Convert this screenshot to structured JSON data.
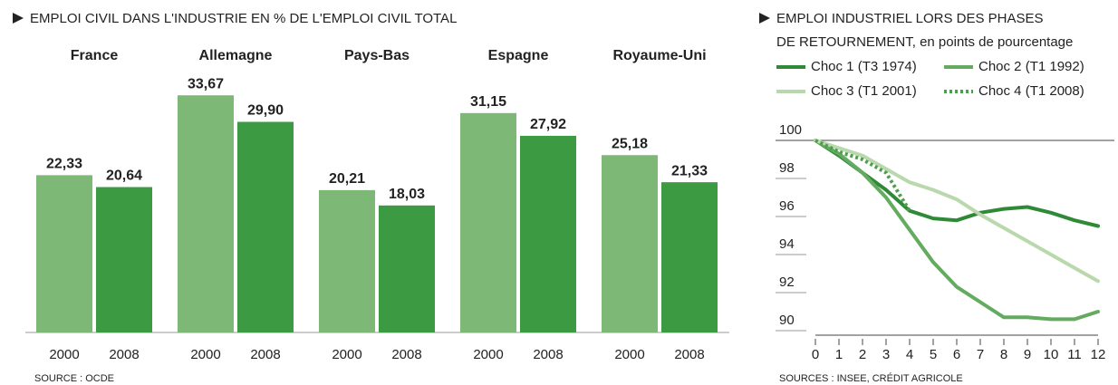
{
  "chart_data": [
    {
      "type": "bar",
      "title": "EMPLOI CIVIL DANS L'INDUSTRIE EN % DE L'EMPLOI CIVIL TOTAL",
      "categories": [
        "France",
        "Allemagne",
        "Pays-Bas",
        "Espagne",
        "Royaume-Uni"
      ],
      "series": [
        {
          "name": "2000",
          "color": "#7db877",
          "values": [
            22.33,
            33.67,
            20.21,
            31.15,
            25.18
          ],
          "value_labels": [
            "22,33",
            "33,67",
            "20,21",
            "31,15",
            "25,18"
          ]
        },
        {
          "name": "2008",
          "color": "#3b9a42",
          "values": [
            20.64,
            29.9,
            18.03,
            27.92,
            21.33
          ],
          "value_labels": [
            "20,64",
            "29,90",
            "18,03",
            "27,92",
            "21,33"
          ]
        }
      ],
      "ylim": [
        0,
        40
      ],
      "source": "SOURCE : OCDE"
    },
    {
      "type": "line",
      "title_lines": [
        "EMPLOI INDUSTRIEL LORS DES PHASES",
        "DE RETOURNEMENT, en points de pourcentage"
      ],
      "x": [
        0,
        1,
        2,
        3,
        4,
        5,
        6,
        7,
        8,
        9,
        10,
        11,
        12
      ],
      "series": [
        {
          "name": "Choc 1 (T3 1974)",
          "color": "#2f8a38",
          "style": "solid",
          "values": [
            100,
            99.2,
            98.3,
            97.4,
            96.3,
            95.9,
            95.8,
            96.2,
            96.4,
            96.5,
            96.2,
            95.8,
            95.5
          ]
        },
        {
          "name": "Choc 2 (T1 1992)",
          "color": "#63ab5f",
          "style": "solid",
          "values": [
            100,
            99.3,
            98.3,
            97.0,
            95.3,
            93.6,
            92.3,
            91.5,
            90.7,
            90.7,
            90.6,
            90.6,
            91.0
          ]
        },
        {
          "name": "Choc 3 (T1 2001)",
          "color": "#b9d9ad",
          "style": "solid",
          "values": [
            100,
            99.6,
            99.2,
            98.5,
            97.8,
            97.4,
            96.9,
            96.1,
            95.4,
            94.7,
            94.0,
            93.3,
            92.6
          ]
        },
        {
          "name": "Choc 4 (T1 2008)",
          "color": "#4f9e4f",
          "style": "dotted",
          "values": [
            100,
            99.4,
            99.0,
            98.3,
            96.3,
            null,
            null,
            null,
            null,
            null,
            null,
            null,
            null
          ]
        }
      ],
      "xlim": [
        0,
        12
      ],
      "xticks": [
        0,
        1,
        2,
        3,
        4,
        5,
        6,
        7,
        8,
        9,
        10,
        11,
        12
      ],
      "ylim": [
        89.7,
        100
      ],
      "yticks": [
        100,
        98,
        96,
        94,
        92,
        90
      ],
      "reference_line": 100,
      "source": "SOURCES : INSEE, CRÉDIT AGRICOLE"
    }
  ]
}
